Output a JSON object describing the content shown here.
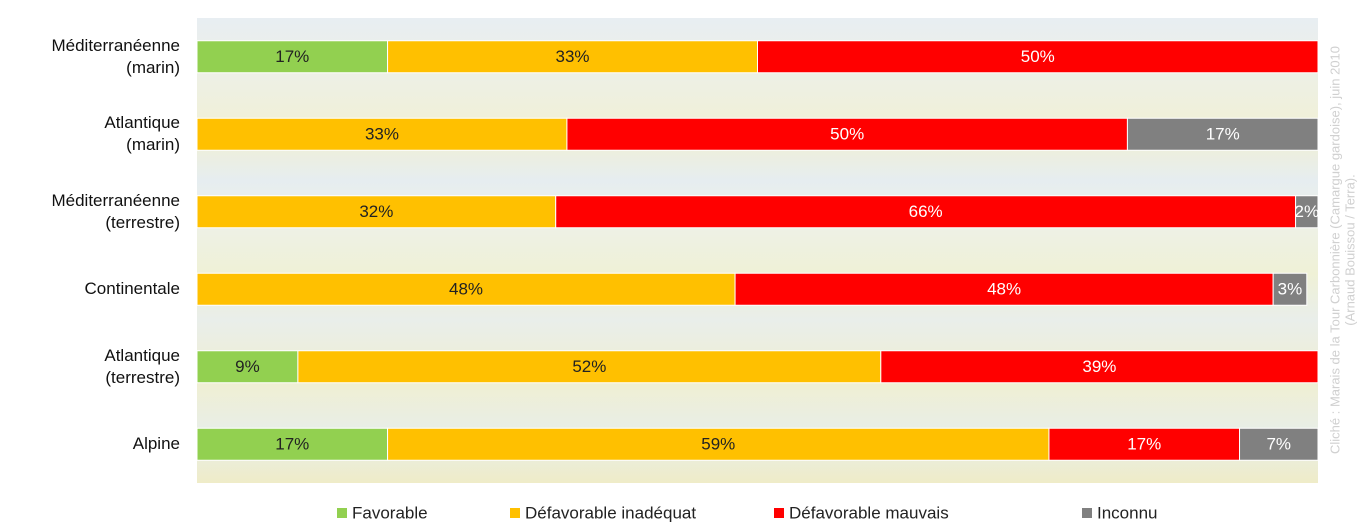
{
  "chart_data": {
    "type": "stacked-bar-horizontal",
    "categories": [
      "Méditerranéenne\n(marin)",
      "Atlantique\n(marin)",
      "Méditerranéenne\n(terrestre)",
      "Continentale",
      "Atlantique\n(terrestre)",
      "Alpine"
    ],
    "xlim": [
      0,
      100
    ],
    "series": [
      {
        "name": "Favorable",
        "color": "#92d050",
        "values": [
          17,
          null,
          null,
          null,
          9,
          17
        ],
        "value_labels": [
          "17%",
          null,
          null,
          null,
          "9%",
          "17%"
        ]
      },
      {
        "name": "Défavorable inadéquat",
        "color": "#ffc000",
        "values": [
          33,
          33,
          32,
          48,
          52,
          59
        ],
        "value_labels": [
          "33%",
          "33%",
          "32%",
          "48%",
          "52%",
          "59%"
        ]
      },
      {
        "name": "Défavorable mauvais",
        "color": "#ff0000",
        "values": [
          50,
          50,
          66,
          48,
          39,
          17
        ],
        "value_labels": [
          "50%",
          "50%",
          "66%",
          "48%",
          "39%",
          "17%"
        ]
      },
      {
        "name": "Inconnu",
        "color": "#808080",
        "values": [
          null,
          17,
          2,
          3,
          null,
          7
        ],
        "value_labels": [
          null,
          "17%",
          "2%",
          "3%",
          null,
          "7%"
        ]
      }
    ],
    "credit": [
      "Cliché : Marais de la Tour Carbonnière (Camargue gardoise), juin 2010",
      "(Arnaud Bouissou / Terra)."
    ]
  }
}
